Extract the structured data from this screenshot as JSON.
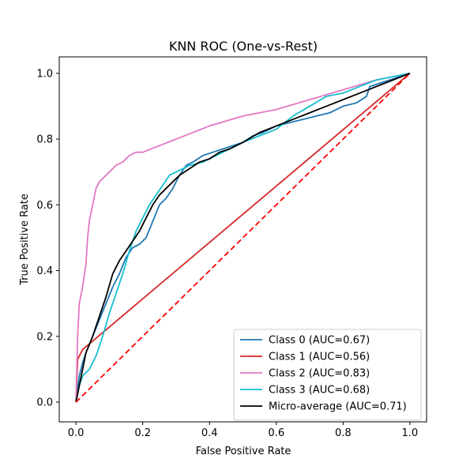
{
  "chart_data": {
    "type": "line",
    "title": "KNN ROC (One-vs-Rest)",
    "xlabel": "False Positive Rate",
    "ylabel": "True Positive Rate",
    "xlim": [
      -0.05,
      1.05
    ],
    "ylim": [
      -0.06,
      1.05
    ],
    "xticks": [
      0.0,
      0.2,
      0.4,
      0.6,
      0.8,
      1.0
    ],
    "yticks": [
      0.0,
      0.2,
      0.4,
      0.6,
      0.8,
      1.0
    ],
    "xtick_labels": [
      "0.0",
      "0.2",
      "0.4",
      "0.6",
      "0.8",
      "1.0"
    ],
    "ytick_labels": [
      "0.0",
      "0.2",
      "0.4",
      "0.6",
      "0.8",
      "1.0"
    ],
    "grid": false,
    "legend_position": "lower-right",
    "series": [
      {
        "name": "Class 0 (AUC=0.67)",
        "color": "#1f77b4",
        "style": "solid",
        "x": [
          0.0,
          0.01,
          0.02,
          0.03,
          0.05,
          0.07,
          0.09,
          0.11,
          0.13,
          0.15,
          0.17,
          0.19,
          0.21,
          0.23,
          0.25,
          0.27,
          0.29,
          0.31,
          0.33,
          0.35,
          0.38,
          0.41,
          0.44,
          0.47,
          0.5,
          0.53,
          0.56,
          0.6,
          0.64,
          0.68,
          0.72,
          0.76,
          0.8,
          0.84,
          0.87,
          0.88,
          1.0
        ],
        "y": [
          0.0,
          0.08,
          0.12,
          0.15,
          0.2,
          0.25,
          0.3,
          0.35,
          0.39,
          0.44,
          0.47,
          0.48,
          0.5,
          0.55,
          0.6,
          0.62,
          0.65,
          0.69,
          0.72,
          0.73,
          0.75,
          0.76,
          0.77,
          0.78,
          0.79,
          0.81,
          0.82,
          0.84,
          0.85,
          0.86,
          0.87,
          0.88,
          0.9,
          0.91,
          0.93,
          0.96,
          1.0
        ]
      },
      {
        "name": "Class 1 (AUC=0.56)",
        "color": "#d62728",
        "style": "solid",
        "x": [
          0.0,
          0.005,
          0.02,
          1.0
        ],
        "y": [
          0.0,
          0.13,
          0.16,
          1.0
        ]
      },
      {
        "name": "Class 2 (AUC=0.83)",
        "color": "#e377c2",
        "style": "solid",
        "x": [
          0.0,
          0.005,
          0.01,
          0.02,
          0.03,
          0.035,
          0.04,
          0.05,
          0.06,
          0.07,
          0.08,
          0.09,
          0.1,
          0.12,
          0.14,
          0.16,
          0.18,
          0.2,
          0.3,
          0.4,
          0.5,
          0.6,
          0.7,
          0.8,
          0.9,
          1.0
        ],
        "y": [
          0.0,
          0.2,
          0.3,
          0.35,
          0.42,
          0.5,
          0.55,
          0.6,
          0.65,
          0.67,
          0.68,
          0.69,
          0.7,
          0.72,
          0.73,
          0.75,
          0.76,
          0.76,
          0.8,
          0.84,
          0.87,
          0.89,
          0.92,
          0.95,
          0.98,
          1.0
        ]
      },
      {
        "name": "Class 3 (AUC=0.68)",
        "color": "#17becf",
        "style": "solid",
        "x": [
          0.0,
          0.01,
          0.02,
          0.04,
          0.06,
          0.08,
          0.1,
          0.12,
          0.14,
          0.16,
          0.18,
          0.2,
          0.22,
          0.24,
          0.26,
          0.28,
          0.3,
          0.34,
          0.38,
          0.42,
          0.46,
          0.5,
          0.55,
          0.6,
          0.65,
          0.7,
          0.75,
          0.8,
          0.85,
          0.9,
          1.0
        ],
        "y": [
          0.0,
          0.05,
          0.08,
          0.1,
          0.14,
          0.2,
          0.27,
          0.33,
          0.39,
          0.46,
          0.52,
          0.56,
          0.6,
          0.63,
          0.66,
          0.69,
          0.7,
          0.72,
          0.73,
          0.75,
          0.77,
          0.79,
          0.81,
          0.83,
          0.87,
          0.9,
          0.93,
          0.94,
          0.96,
          0.98,
          1.0
        ]
      },
      {
        "name": "Micro-average (AUC=0.71)",
        "color": "#000000",
        "style": "solid",
        "x": [
          0.0,
          0.01,
          0.02,
          0.03,
          0.05,
          0.07,
          0.09,
          0.11,
          0.13,
          0.15,
          0.17,
          0.19,
          0.21,
          0.23,
          0.25,
          0.28,
          0.31,
          0.34,
          0.37,
          0.4,
          0.43,
          0.46,
          0.5,
          0.55,
          0.6,
          0.65,
          0.7,
          0.75,
          0.8,
          0.85,
          0.9,
          0.95,
          1.0
        ],
        "y": [
          0.0,
          0.05,
          0.1,
          0.15,
          0.2,
          0.26,
          0.32,
          0.39,
          0.43,
          0.46,
          0.49,
          0.52,
          0.56,
          0.6,
          0.63,
          0.66,
          0.69,
          0.71,
          0.73,
          0.74,
          0.76,
          0.77,
          0.79,
          0.82,
          0.84,
          0.86,
          0.88,
          0.9,
          0.92,
          0.94,
          0.96,
          0.98,
          1.0
        ]
      }
    ],
    "diagonal": {
      "color": "#ff0000",
      "style": "dashed",
      "x": [
        0.0,
        1.0
      ],
      "y": [
        0.0,
        1.0
      ]
    }
  }
}
